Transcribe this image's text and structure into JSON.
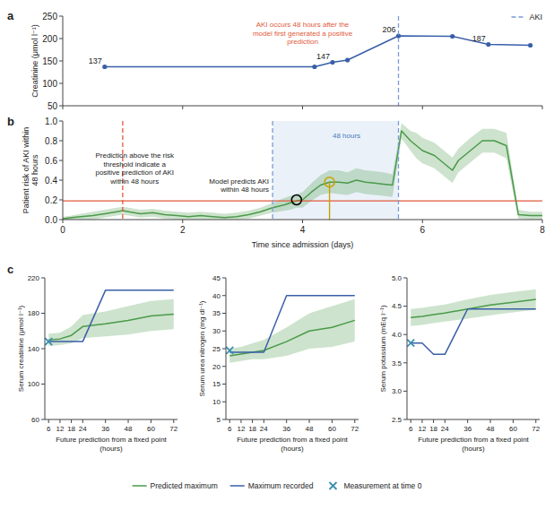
{
  "chart_data": [
    {
      "type": "line",
      "title": "a",
      "x": [
        0.7,
        4.2,
        4.5,
        4.75,
        5.6,
        6.5,
        7.1,
        7.8
      ],
      "xlim": [
        0,
        8
      ],
      "xticks": [
        0,
        2,
        4,
        6,
        8
      ],
      "tick_labels": "y",
      "ylim": [
        50,
        250
      ],
      "yticks": [
        50,
        100,
        150,
        200,
        250
      ],
      "y_label": "Creatinine (μmol l⁻¹)",
      "series": [
        {
          "color": "#3a5fa8",
          "marker": "circle",
          "values": [
            137,
            137,
            147,
            152,
            206,
            205,
            187,
            185
          ],
          "value_labels": [
            "137",
            null,
            "147",
            null,
            "206",
            null,
            "187",
            null
          ]
        }
      ],
      "data_labels": true,
      "reference_lines": [
        {
          "axis": "x",
          "value": 5.6,
          "name": "AKI",
          "color": "#7a9bd4",
          "line_style": "dashed"
        }
      ],
      "legend": "upper right",
      "annotations": [
        {
          "text": "AKI occurs 48 hours after the\nmodel first generated a positive\nprediction",
          "color": "#e05a3a"
        }
      ]
    },
    {
      "type": "line",
      "title": "b",
      "x": [
        0,
        0.15,
        0.3,
        0.5,
        0.7,
        0.9,
        1.0,
        1.1,
        1.3,
        1.5,
        1.7,
        1.9,
        2.1,
        2.3,
        2.5,
        2.7,
        2.9,
        3.1,
        3.3,
        3.5,
        3.7,
        3.8,
        3.9,
        4.0,
        4.15,
        4.3,
        4.45,
        4.6,
        4.75,
        4.9,
        5.05,
        5.2,
        5.35,
        5.5,
        5.65,
        5.8,
        5.9,
        6.0,
        6.2,
        6.4,
        6.5,
        6.6,
        6.8,
        7.0,
        7.2,
        7.4,
        7.6,
        7.8,
        8.0
      ],
      "xlim": [
        0,
        8
      ],
      "xticks": [
        0,
        2,
        4,
        6,
        8
      ],
      "ylim": [
        0,
        1.0
      ],
      "yticks": [
        {
          "value": 0,
          "label": "0.0"
        },
        0.2,
        0.4,
        0.6,
        0.8,
        {
          "value": 1,
          "label": "1.0"
        }
      ],
      "x_label": "Time since admission (days)",
      "y_label": "Patient risk of AKI within\n48 hours",
      "series": [
        {
          "color": "#4a9a4a",
          "values": [
            0.01,
            0.02,
            0.03,
            0.04,
            0.06,
            0.08,
            0.09,
            0.08,
            0.06,
            0.07,
            0.05,
            0.04,
            0.03,
            0.04,
            0.03,
            0.02,
            0.03,
            0.05,
            0.08,
            0.12,
            0.15,
            0.17,
            0.19,
            0.2,
            0.28,
            0.35,
            0.38,
            0.38,
            0.37,
            0.4,
            0.38,
            0.37,
            0.36,
            0.35,
            0.9,
            0.8,
            0.75,
            0.7,
            0.65,
            0.55,
            0.5,
            0.6,
            0.7,
            0.8,
            0.8,
            0.75,
            0.05,
            0.04,
            0.04
          ],
          "upper": [
            0.03,
            0.04,
            0.06,
            0.08,
            0.1,
            0.12,
            0.13,
            0.12,
            0.1,
            0.11,
            0.09,
            0.08,
            0.07,
            0.08,
            0.07,
            0.06,
            0.07,
            0.09,
            0.12,
            0.17,
            0.22,
            0.24,
            0.26,
            0.28,
            0.37,
            0.45,
            0.5,
            0.5,
            0.48,
            0.52,
            0.5,
            0.49,
            0.48,
            0.46,
            0.98,
            0.9,
            0.88,
            0.83,
            0.78,
            0.68,
            0.63,
            0.72,
            0.83,
            0.92,
            0.92,
            0.88,
            0.1,
            0.08,
            0.08
          ],
          "lower": [
            0.0,
            0.0,
            0.0,
            0.0,
            0.02,
            0.04,
            0.05,
            0.04,
            0.02,
            0.03,
            0.01,
            0.0,
            0.0,
            0.0,
            0.0,
            0.0,
            0.0,
            0.01,
            0.04,
            0.07,
            0.09,
            0.1,
            0.12,
            0.12,
            0.19,
            0.25,
            0.27,
            0.26,
            0.25,
            0.28,
            0.26,
            0.25,
            0.24,
            0.23,
            0.82,
            0.7,
            0.62,
            0.57,
            0.52,
            0.42,
            0.37,
            0.48,
            0.58,
            0.68,
            0.68,
            0.62,
            0.01,
            0.0,
            0.0
          ]
        }
      ],
      "reference_lines": [
        {
          "axis": "y",
          "value": 0.19,
          "color": "#e05a3a"
        },
        {
          "axis": "x",
          "value": 3.5,
          "color": "#7a9bd4",
          "line_style": "dashed"
        },
        {
          "axis": "x",
          "value": 5.6,
          "color": "#7a9bd4",
          "line_style": "dashed"
        },
        {
          "axis": "x",
          "value": 1.0,
          "color": "#e05a3a",
          "line_style": "dashed"
        }
      ],
      "spans": [
        {
          "x1": 3.5,
          "x2": 5.6,
          "color": "#dde8f5"
        }
      ],
      "drop_lines": [
        {
          "x": 4.45,
          "y1": 0.0,
          "y2": 0.38,
          "color": "#c8a000"
        }
      ],
      "highlights": [
        {
          "x": 3.9,
          "y": 0.2,
          "color": "#000000"
        },
        {
          "x": 4.45,
          "y": 0.38,
          "color": "#c8a000"
        }
      ],
      "annotations": [
        {
          "text": "Prediction above the risk\nthreshold indicate a\npositive prediction of AKI\nwithin 48 hours",
          "color": "#222222"
        },
        {
          "text": "Model predicts AKI\nwithin 48 hours",
          "color": "#222222"
        },
        {
          "text": "48 hours",
          "color": "#4a7bbf"
        }
      ]
    },
    {
      "type": "line",
      "title": "c",
      "x": [
        6,
        12,
        18,
        24,
        36,
        48,
        60,
        72
      ],
      "xlim": [
        4,
        74
      ],
      "xticks": [
        6,
        12,
        18,
        24,
        36,
        48,
        60,
        72
      ],
      "ylim": [
        60,
        220
      ],
      "yticks": [
        60,
        100,
        140,
        180,
        220
      ],
      "x_label": "Future prediction from a fixed point\n(hours)",
      "y_label": "Serum creatinine (μmol l⁻¹)",
      "legend": "bottom",
      "series": [
        {
          "name": "Predicted maximum",
          "color": "#4a9a4a",
          "values": [
            150,
            151,
            155,
            165,
            168,
            172,
            177,
            179
          ],
          "upper": [
            157,
            158,
            165,
            178,
            182,
            188,
            194,
            196
          ],
          "lower": [
            143,
            144,
            146,
            152,
            154,
            156,
            160,
            162
          ]
        },
        {
          "name": "Maximum recorded",
          "color": "#3a5fa8",
          "values": [
            148,
            148,
            148,
            148,
            206,
            206,
            206,
            206
          ]
        },
        {
          "name": "Measurement at time 0",
          "type": "scatter",
          "marker": "x",
          "color": "#3a8fb0",
          "x": [
            6
          ],
          "values": [
            148
          ]
        }
      ]
    },
    {
      "type": "line",
      "x": [
        6,
        12,
        18,
        24,
        36,
        48,
        60,
        72
      ],
      "xlim": [
        4,
        74
      ],
      "xticks": [
        6,
        12,
        18,
        24,
        36,
        48,
        60,
        72
      ],
      "ylim": [
        5,
        45
      ],
      "yticks": [
        5,
        10,
        15,
        20,
        25,
        30,
        35,
        40,
        45
      ],
      "x_label": "Future prediction from a fixed point\n(hours)",
      "y_label": "Serum urea nitrogen (mg dl⁻¹)",
      "series": [
        {
          "color": "#4a9a4a",
          "values": [
            23,
            23.5,
            24,
            24.5,
            27,
            30,
            31,
            33
          ],
          "upper": [
            25,
            25.5,
            26.5,
            27.5,
            31,
            35,
            37,
            39
          ],
          "lower": [
            21,
            21.5,
            22,
            22,
            23,
            25,
            25.5,
            27
          ]
        },
        {
          "color": "#3a5fa8",
          "values": [
            24,
            24,
            24,
            24,
            40,
            40,
            40,
            40
          ]
        },
        {
          "type": "scatter",
          "marker": "x",
          "color": "#3a8fb0",
          "x": [
            6
          ],
          "values": [
            24.5
          ]
        }
      ]
    },
    {
      "type": "line",
      "x": [
        6,
        12,
        18,
        24,
        36,
        48,
        60,
        72
      ],
      "xlim": [
        4,
        74
      ],
      "xticks": [
        6,
        12,
        18,
        24,
        36,
        48,
        60,
        72
      ],
      "ylim": [
        2.5,
        5.0
      ],
      "yticks": [
        2.5,
        {
          "value": 3,
          "label": "3.0"
        },
        3.5,
        {
          "value": 4,
          "label": "4.0"
        },
        4.5,
        {
          "value": 5,
          "label": "5.0"
        }
      ],
      "x_label": "Future prediction from a fixed point\n(hours)",
      "y_label": "Serum potassium (mEq l⁻¹)",
      "series": [
        {
          "color": "#4a9a4a",
          "values": [
            4.3,
            4.32,
            4.35,
            4.38,
            4.45,
            4.52,
            4.57,
            4.62
          ],
          "upper": [
            4.45,
            4.47,
            4.5,
            4.53,
            4.62,
            4.7,
            4.75,
            4.8
          ],
          "lower": [
            4.15,
            4.17,
            4.2,
            4.23,
            4.28,
            4.34,
            4.39,
            4.44
          ]
        },
        {
          "color": "#3a5fa8",
          "values": [
            3.85,
            3.85,
            3.65,
            3.65,
            4.45,
            4.45,
            4.45,
            4.45
          ]
        },
        {
          "type": "scatter",
          "marker": "x",
          "color": "#3a8fb0",
          "x": [
            6
          ],
          "values": [
            3.85
          ]
        }
      ]
    }
  ]
}
